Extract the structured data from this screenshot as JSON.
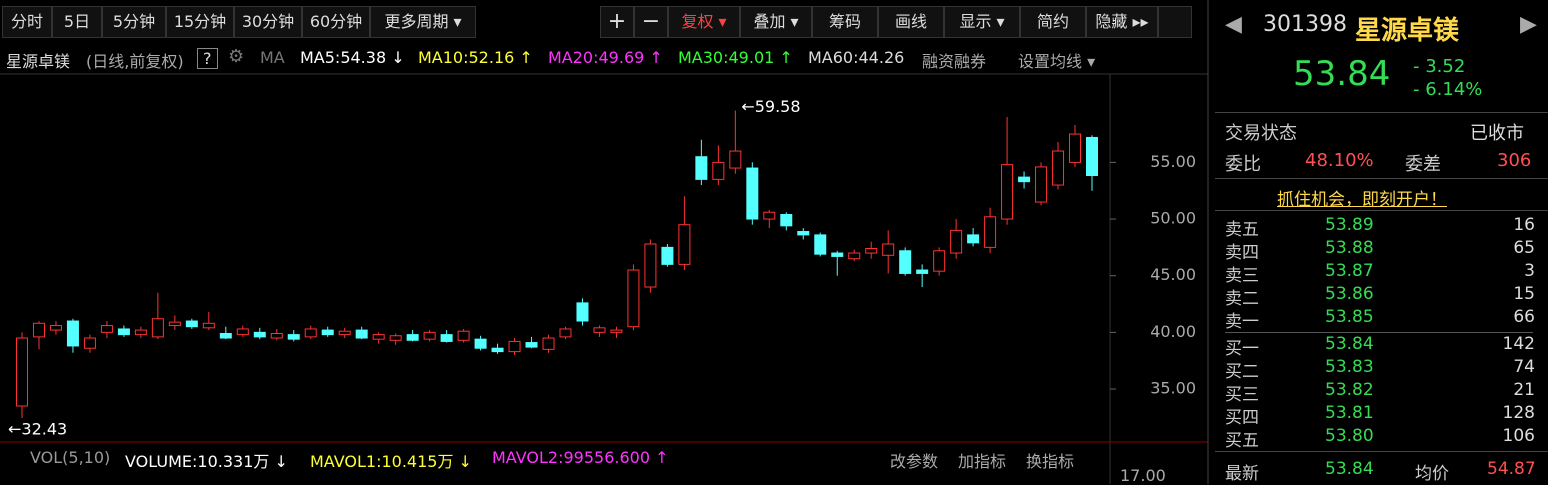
{
  "toolbar": {
    "periods": [
      "分时",
      "5日",
      "5分钟",
      "15分钟",
      "30分钟",
      "60分钟",
      "更多周期 ▾"
    ],
    "zoom": [
      "+",
      "−"
    ],
    "tools": [
      "复权 ▾",
      "叠加 ▾",
      "筹码",
      "画线",
      "显示 ▾",
      "简约",
      "隐藏 ▸▸"
    ]
  },
  "info_bar": {
    "stock": "星源卓镁",
    "mode": "(日线,前复权)",
    "help": "?",
    "ma_label": "MA",
    "ma5": "MA5:54.38 ↓",
    "ma10": "MA10:52.16 ↑",
    "ma20": "MA20:49.69 ↑",
    "ma30": "MA30:49.01 ↑",
    "ma60": "MA60:44.26",
    "margin": "融资融券",
    "settings": "设置均线 ▾"
  },
  "chart_data": {
    "type": "candlestick",
    "open": [
      33.5,
      39.6,
      40.2,
      41,
      38.6,
      40,
      40.3,
      39.8,
      39.6,
      40.6,
      41,
      40.4,
      39.9,
      39.8,
      40,
      39.5,
      39.8,
      39.6,
      40.2,
      39.8,
      40.2,
      39.4,
      39.3,
      39.8,
      39.4,
      39.8,
      39.3,
      39.4,
      38.6,
      38.3,
      39.1,
      38.5,
      39.6,
      42.6,
      40,
      40,
      40.5,
      44,
      47.5,
      46,
      55.5,
      53.5,
      54.5,
      54.5,
      50,
      50.4,
      48.9,
      48.6,
      47,
      46.5,
      47,
      46.8,
      47.2,
      45.5,
      45.4,
      47,
      48.6,
      47.5,
      50,
      53.7,
      51.5,
      53,
      55,
      57.2
    ],
    "high": [
      40,
      41,
      41,
      41.2,
      39.8,
      41,
      40.6,
      40.5,
      43.5,
      41.5,
      41.2,
      41.8,
      40.5,
      40.6,
      40.4,
      40.3,
      40.2,
      40.6,
      40.5,
      40.4,
      40.5,
      40,
      39.9,
      40.2,
      40.2,
      40.2,
      40.3,
      39.7,
      39,
      39.5,
      39.6,
      39.8,
      40.5,
      43,
      40.6,
      40.5,
      46,
      48.2,
      47.8,
      52,
      57,
      56.5,
      59.58,
      55,
      50.8,
      50.6,
      49.2,
      48.8,
      47.2,
      47.3,
      48,
      49,
      47.5,
      46,
      47.5,
      50,
      49.2,
      51,
      59,
      54.2,
      55,
      56.8,
      58.3,
      57.4
    ],
    "low": [
      32.43,
      38.5,
      39.8,
      38.2,
      38.2,
      39.5,
      39.6,
      39.5,
      39.4,
      40.2,
      40.3,
      40.2,
      39.4,
      39.6,
      39.4,
      39.3,
      39.2,
      39.4,
      39.6,
      39.5,
      39.4,
      39,
      38.9,
      39.2,
      39.2,
      39.1,
      39.1,
      38.4,
      38.1,
      38,
      38.6,
      38.2,
      39.4,
      40.6,
      39.6,
      39.5,
      40.2,
      43.5,
      45.8,
      45.5,
      53,
      53,
      54,
      49.5,
      49.2,
      49,
      48.2,
      46.7,
      45,
      46.3,
      46.5,
      45.2,
      45,
      44,
      45,
      46.5,
      47.6,
      47,
      49.5,
      52.7,
      51.2,
      52.6,
      54.6,
      52.5
    ],
    "close": [
      39.5,
      40.8,
      40.6,
      38.8,
      39.5,
      40.6,
      39.8,
      40.2,
      41.2,
      40.9,
      40.5,
      40.8,
      39.5,
      40.3,
      39.6,
      39.9,
      39.4,
      40.3,
      39.8,
      40.1,
      39.5,
      39.8,
      39.7,
      39.3,
      40,
      39.2,
      40.1,
      38.6,
      38.3,
      39.2,
      38.7,
      39.5,
      40.3,
      41,
      40.4,
      40.2,
      45.5,
      47.8,
      46,
      49.5,
      53.5,
      55,
      56,
      50,
      50.6,
      49.4,
      48.6,
      46.9,
      46.7,
      47,
      47.4,
      47.8,
      45.2,
      45.2,
      47.2,
      49,
      47.9,
      50.2,
      54.8,
      53.3,
      54.6,
      56,
      57.5,
      53.84
    ],
    "up_color": "#ff3232",
    "down_color": "#54ffff",
    "ylim": [
      30.5,
      62.8
    ],
    "yticks": [
      {
        "value": 55,
        "label": "55.00"
      },
      {
        "value": 50,
        "label": "50.00"
      },
      {
        "value": 45,
        "label": "45.00"
      },
      {
        "value": 40,
        "label": "40.00"
      },
      {
        "value": 35,
        "label": "35.00"
      }
    ],
    "annotations": [
      {
        "value": 59.58,
        "label": "←59.58"
      },
      {
        "value": 32.43,
        "label": "←32.43"
      }
    ]
  },
  "volume_bar": {
    "name": "VOL(5,10)",
    "volume": "VOLUME:10.331万 ↓",
    "mavol1": "MAVOL1:10.415万 ↓",
    "mavol2": "MAVOL2:99556.600 ↑",
    "buttons": [
      "改参数",
      "加指标",
      "换指标"
    ],
    "axis_label": "17.00"
  },
  "quote": {
    "code": "301398",
    "name": "星源卓镁",
    "price": "53.84",
    "change": "- 3.52",
    "change_pct": "- 6.14%",
    "status_label": "交易状态",
    "status": "已收市",
    "ratio_label": "委比",
    "ratio": "48.10%",
    "diff_label": "委差",
    "diff": "306",
    "banner": "抓住机会，即刻开户！",
    "asks": [
      [
        "卖五",
        "53.89",
        "16"
      ],
      [
        "卖四",
        "53.88",
        "65"
      ],
      [
        "卖三",
        "53.87",
        "3"
      ],
      [
        "卖二",
        "53.86",
        "15"
      ],
      [
        "卖一",
        "53.85",
        "66"
      ]
    ],
    "bids": [
      [
        "买一",
        "53.84",
        "142"
      ],
      [
        "买二",
        "53.83",
        "74"
      ],
      [
        "买三",
        "53.82",
        "21"
      ],
      [
        "买四",
        "53.81",
        "128"
      ],
      [
        "买五",
        "53.80",
        "106"
      ]
    ],
    "last_label": "最新",
    "last": "53.84",
    "avg_label": "均价",
    "avg": "54.87"
  }
}
